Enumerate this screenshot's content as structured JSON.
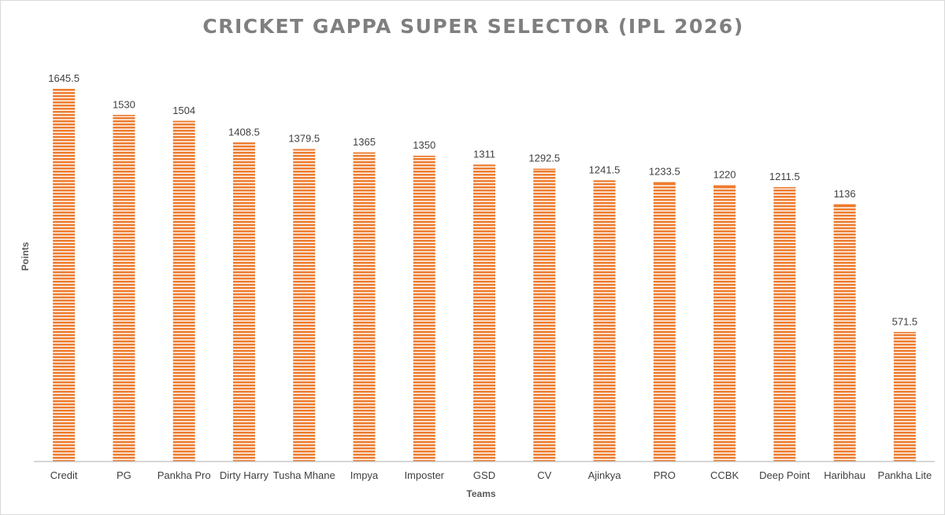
{
  "chart_data": {
    "type": "bar",
    "title": "CRICKET GAPPA SUPER SELECTOR (IPL 2026)",
    "xlabel": "Teams",
    "ylabel": "Points",
    "categories": [
      "Credit",
      "PG",
      "Pankha Pro",
      "Dirty Harry",
      "Tusha Mhane",
      "Impya",
      "Imposter",
      "GSD",
      "CV",
      "Ajinkya",
      "PRO",
      "CCBK",
      "Deep Point",
      "Haribhau",
      "Pankha Lite"
    ],
    "values": [
      1645.5,
      1530,
      1504,
      1408.5,
      1379.5,
      1365,
      1350,
      1311,
      1292.5,
      1241.5,
      1233.5,
      1220,
      1211.5,
      1136,
      571.5
    ],
    "data_labels": [
      "1645.5",
      "1530",
      "1504",
      "1408.5",
      "1379.5",
      "1365",
      "1350",
      "1311",
      "1292.5",
      "1241.5",
      "1233.5",
      "1220",
      "1211.5",
      "1136",
      "571.5"
    ],
    "ylim": [
      0,
      1645.5
    ],
    "grid": false,
    "legend": "none",
    "bar_pattern": "horizontal-stripes",
    "colors": {
      "bar": "#ed7d31",
      "title": "#7f7f7f",
      "axis": "#bfbfbf",
      "text": "#404040"
    }
  }
}
